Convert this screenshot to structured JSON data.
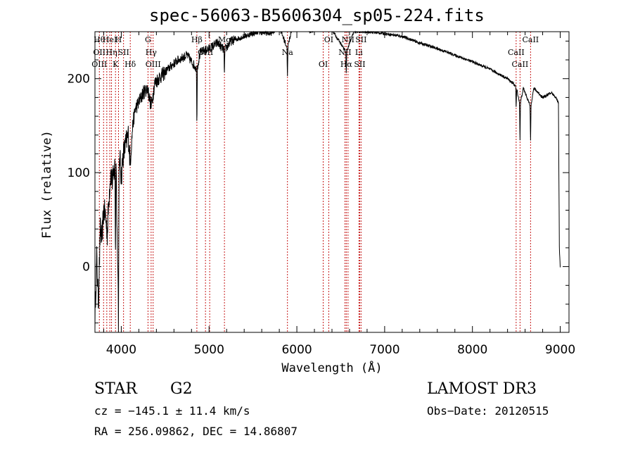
{
  "chart_data": {
    "type": "line",
    "title": "spec-56063-B5606304_sp05-224.fits",
    "xlabel": "Wavelength (Å)",
    "ylabel": "Flux (relative)",
    "xlim": [
      3700,
      9100
    ],
    "ylim": [
      -70,
      250
    ],
    "xticks": [
      4000,
      5000,
      6000,
      7000,
      8000,
      9000
    ],
    "yticks": [
      0,
      100,
      200
    ],
    "series": [
      {
        "name": "flux",
        "x": [
          3700,
          3720,
          3740,
          3760,
          3780,
          3800,
          3820,
          3840,
          3860,
          3880,
          3900,
          3920,
          3940,
          3960,
          3980,
          4000,
          4020,
          4050,
          4080,
          4102,
          4130,
          4160,
          4200,
          4250,
          4300,
          4340,
          4380,
          4420,
          4480,
          4550,
          4650,
          4750,
          4861,
          4900,
          5000,
          5100,
          5175,
          5250,
          5400,
          5550,
          5700,
          5800,
          5893,
          5950,
          6050,
          6150,
          6300,
          6400,
          6563,
          6650,
          6800,
          7000,
          7200,
          7400,
          7600,
          7800,
          8000,
          8200,
          8400,
          8498,
          8542,
          8580,
          8662,
          8700,
          8800,
          8900,
          8950,
          8980,
          8990,
          9000
        ],
        "values": [
          -55,
          10,
          -40,
          40,
          30,
          60,
          55,
          35,
          75,
          100,
          90,
          102,
          120,
          -5,
          120,
          95,
          118,
          130,
          140,
          110,
          150,
          168,
          175,
          185,
          190,
          170,
          195,
          200,
          205,
          212,
          220,
          225,
          210,
          228,
          232,
          238,
          230,
          240,
          245,
          250,
          248,
          255,
          232,
          257,
          255,
          250,
          255,
          252,
          228,
          250,
          250,
          248,
          245,
          238,
          232,
          225,
          218,
          210,
          200,
          192,
          172,
          190,
          170,
          190,
          180,
          185,
          180,
          175,
          20,
          0
        ]
      }
    ],
    "lines": [
      {
        "wl": 3750,
        "labels": [
          "Hθ",
          "OII",
          "OIII"
        ]
      },
      {
        "wl": 3798,
        "labels": []
      },
      {
        "wl": 3835,
        "labels": []
      },
      {
        "wl": 3869,
        "labels": [
          "HeI"
        ]
      },
      {
        "wl": 3889,
        "labels": [
          "Hη"
        ]
      },
      {
        "wl": 3934,
        "labels": [
          "K"
        ]
      },
      {
        "wl": 3968,
        "labels": [
          "H"
        ]
      },
      {
        "wl": 4026,
        "labels": [
          "SII"
        ]
      },
      {
        "wl": 4102,
        "labels": [
          "Hδ"
        ]
      },
      {
        "wl": 4304,
        "labels": [
          "G"
        ]
      },
      {
        "wl": 4340,
        "labels": [
          "Hγ"
        ]
      },
      {
        "wl": 4363,
        "labels": [
          "OIII"
        ]
      },
      {
        "wl": 4861,
        "labels": [
          "Hβ"
        ]
      },
      {
        "wl": 4959,
        "labels": [
          "OIII"
        ]
      },
      {
        "wl": 5007,
        "labels": []
      },
      {
        "wl": 5175,
        "labels": [
          "Mg"
        ]
      },
      {
        "wl": 5893,
        "labels": [
          "Na"
        ]
      },
      {
        "wl": 6300,
        "labels": [
          "OI"
        ]
      },
      {
        "wl": 6363,
        "labels": [
          "OI"
        ]
      },
      {
        "wl": 6548,
        "labels": [
          "NII"
        ]
      },
      {
        "wl": 6563,
        "labels": [
          "Hα"
        ]
      },
      {
        "wl": 6583,
        "labels": [
          "NII"
        ]
      },
      {
        "wl": 6707,
        "labels": [
          "Li"
        ]
      },
      {
        "wl": 6716,
        "labels": [
          "SII"
        ]
      },
      {
        "wl": 6731,
        "labels": [
          "SII"
        ]
      },
      {
        "wl": 8498,
        "labels": [
          "CaII"
        ]
      },
      {
        "wl": 8542,
        "labels": [
          "CaII"
        ]
      },
      {
        "wl": 8662,
        "labels": [
          "CaII"
        ]
      }
    ],
    "line_color": "#c00000"
  },
  "info": {
    "object_class": "STAR",
    "subclass": "G2",
    "survey": "LAMOST DR3",
    "cz": "cz = −145.1 ± 11.4 km/s",
    "obs_date": "Obs−Date: 20120515",
    "coords": "RA = 256.09862, DEC =  14.86807"
  }
}
